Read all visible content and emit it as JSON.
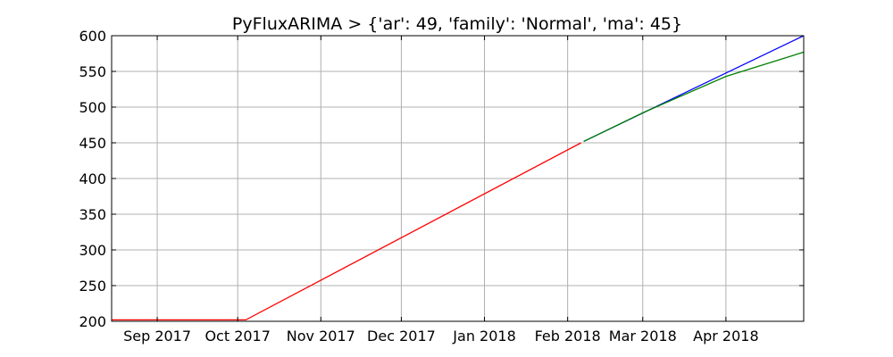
{
  "chart_data": {
    "type": "line",
    "title": "PyFluxARIMA > {'ar': 49, 'family': 'Normal', 'ma': 45}",
    "xlabel": "",
    "ylabel": "",
    "x_ticks": [
      {
        "label": "Sep 2017",
        "date": "2017-09-01"
      },
      {
        "label": "Oct 2017",
        "date": "2017-10-01"
      },
      {
        "label": "Nov 2017",
        "date": "2017-11-01"
      },
      {
        "label": "Dec 2017",
        "date": "2017-12-01"
      },
      {
        "label": "Jan 2018",
        "date": "2018-01-01"
      },
      {
        "label": "Feb 2018",
        "date": "2018-02-01"
      },
      {
        "label": "Mar 2018",
        "date": "2018-03-01"
      },
      {
        "label": "Apr 2018",
        "date": "2018-04-01"
      }
    ],
    "y_ticks": [
      200,
      250,
      300,
      350,
      400,
      450,
      500,
      550,
      600
    ],
    "xlim": [
      "2017-08-15",
      "2018-04-30"
    ],
    "ylim": [
      200,
      600
    ],
    "grid": true,
    "series": [
      {
        "color": "#ff0000",
        "points": [
          {
            "x": "2017-08-15",
            "y": 202
          },
          {
            "x": "2017-10-04",
            "y": 202
          },
          {
            "x": "2018-02-06",
            "y": 450
          }
        ]
      },
      {
        "color": "#0000ff",
        "points": [
          {
            "x": "2018-02-07",
            "y": 452
          },
          {
            "x": "2018-04-30",
            "y": 600
          }
        ]
      },
      {
        "color": "#008000",
        "points": [
          {
            "x": "2018-02-07",
            "y": 452
          },
          {
            "x": "2018-03-01",
            "y": 492
          },
          {
            "x": "2018-04-01",
            "y": 543
          },
          {
            "x": "2018-04-30",
            "y": 577
          }
        ]
      }
    ]
  }
}
